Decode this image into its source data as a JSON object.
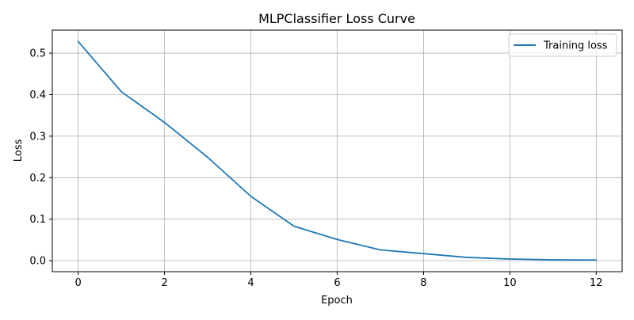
{
  "chart_data": {
    "type": "line",
    "title": "MLPClassifier Loss Curve",
    "xlabel": "Epoch",
    "ylabel": "Loss",
    "xlim": [
      -0.6,
      12.6
    ],
    "ylim": [
      -0.0265,
      0.5555
    ],
    "x_ticks": [
      0,
      2,
      4,
      6,
      8,
      10,
      12
    ],
    "x_tick_labels": [
      "0",
      "2",
      "4",
      "6",
      "8",
      "10",
      "12"
    ],
    "y_ticks": [
      0.0,
      0.1,
      0.2,
      0.3,
      0.4,
      0.5
    ],
    "y_tick_labels": [
      "0.0",
      "0.1",
      "0.2",
      "0.3",
      "0.4",
      "0.5"
    ],
    "grid": true,
    "legend_position": "top-right",
    "series": [
      {
        "name": "Training loss",
        "color": "#1f77b4",
        "x": [
          0,
          1,
          2,
          3,
          4,
          5,
          6,
          7,
          8,
          9,
          10,
          11,
          12
        ],
        "values": [
          0.528,
          0.407,
          0.333,
          0.249,
          0.155,
          0.083,
          0.051,
          0.026,
          0.017,
          0.008,
          0.004,
          0.002,
          0.0015
        ]
      }
    ]
  }
}
